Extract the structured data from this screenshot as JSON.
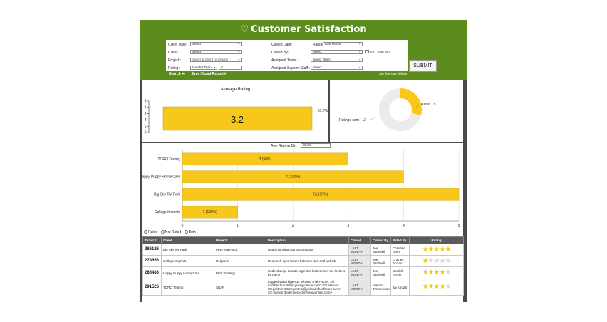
{
  "header": {
    "title": "Customer Satisfaction"
  },
  "filters": {
    "client_type_label": "Client Type:",
    "client_type_value": "Select",
    "client_label": "Client :",
    "client_value": "Select",
    "project_label": "Project :",
    "project_value": "Select a Client or Search",
    "rating_label": "Rating:",
    "rating_op_value": "Greater Than",
    "rating_value": "0",
    "closed_date_label": "Closed Date:",
    "range_label": "Range",
    "range_value": "Last Month",
    "closed_by_label": "Closed By:",
    "closed_by_value": "Select",
    "incl_staff_label": "Incl. Staff Prof.",
    "assigned_team_label": "Assigned Team :",
    "assigned_team_value": "Select Team",
    "assigned_staff_label": "Assigned Support Staff :",
    "assigned_staff_value": "Select",
    "submit_label": "SUBMIT",
    "search_label": "Search ⏶",
    "save_load_label": "Save / Load Report ⏵",
    "default_link": "Set filters as default"
  },
  "avg_chart": {
    "title": "Average Rating",
    "value_label": "3.2",
    "side_label": "61.7%",
    "y_ticks": [
      "5",
      "4",
      "3",
      "2",
      "1",
      "0"
    ]
  },
  "donut_chart": {
    "rated_label": "Rated - 5",
    "sent_label": "Ratings sent - 12",
    "colors": {
      "rated": "#f7c81b",
      "unrated": "#ebebeb"
    }
  },
  "ave_by": {
    "label": "Ave Rating By:",
    "value": "Client"
  },
  "chart_data": [
    {
      "type": "bar",
      "title": "Average Rating",
      "categories": [
        ""
      ],
      "values": [
        3.2
      ],
      "ylim": [
        0,
        5
      ],
      "yticks": [
        0,
        1,
        2,
        3,
        4,
        5
      ]
    },
    {
      "type": "pie",
      "slices": [
        {
          "label": "Rated - 5",
          "value": 5
        },
        {
          "label": "Ratings sent - 12",
          "value": 12
        }
      ]
    },
    {
      "type": "bar",
      "orientation": "horizontal",
      "categories": [
        "TORQ Testing",
        "Happy Puppy Home Care",
        "Big Sky RV Park",
        "College Imprints"
      ],
      "values": [
        3,
        4,
        5,
        1
      ],
      "bar_labels": [
        "3 (50%)",
        "4 (100%)",
        "5 (100%)",
        "1 (100%)"
      ],
      "xlim": [
        0,
        5
      ],
      "xticks": [
        0,
        1,
        2,
        3,
        4,
        5
      ],
      "grid": true,
      "color": "#f7c81b"
    }
  ],
  "hbar_ticks": [
    "0",
    "1",
    "2",
    "3",
    "4",
    "5"
  ],
  "radios": {
    "rated": "Rated",
    "not_rated": "Not Rated",
    "both": "Both"
  },
  "table": {
    "headers": [
      "Ticket #",
      "Client",
      "Project",
      "Description",
      "Closed",
      "Closed By",
      "Rated By",
      "Rating"
    ],
    "rows": [
      {
        "ticket": "286126",
        "client": "Big Sky RV Park",
        "project": "PPB-StarForce",
        "description": "Issues running Starforce reports",
        "closed": "LAST MONTH",
        "closed_by": "Joe Bardwell",
        "rated_by": "Christine Isom",
        "rating": 5
      },
      {
        "ticket": "278653",
        "client": "College Imprints",
        "project": "Helpdesk",
        "description": "Research sync issues between IMS and website",
        "closed": "LAST MONTH",
        "closed_by": "Joe Bardwell",
        "rated_by": "Charles Accuso",
        "rating": 1
      },
      {
        "ticket": "286483",
        "client": "Happy Puppy Home Care",
        "project": "Web Strategy",
        "description": "Code change to auto login into lockers sort the lockers by name",
        "closed": "LAST MONTH",
        "closed_by": "Joe Bardwell",
        "rated_by": "Cordell Kerch",
        "rating": 4
      },
      {
        "ticket": "291526",
        "client": "TORQ Testing",
        "project": "SNAP",
        "description": "Logged via Bridge:RE: Viberto Trial FROM: Jai Kirdatt<JKirdatt@synergyonline.com> TO Marcel Wegenthin<MWegenthin@yellowfishsoftware.com> CC:James Beck<jbeck@synergyonline.com>",
        "closed": "LAST MONTH",
        "closed_by": "Marcel Timmerman",
        "rated_by": "Jai Kirdatt",
        "rating": 4
      }
    ]
  }
}
